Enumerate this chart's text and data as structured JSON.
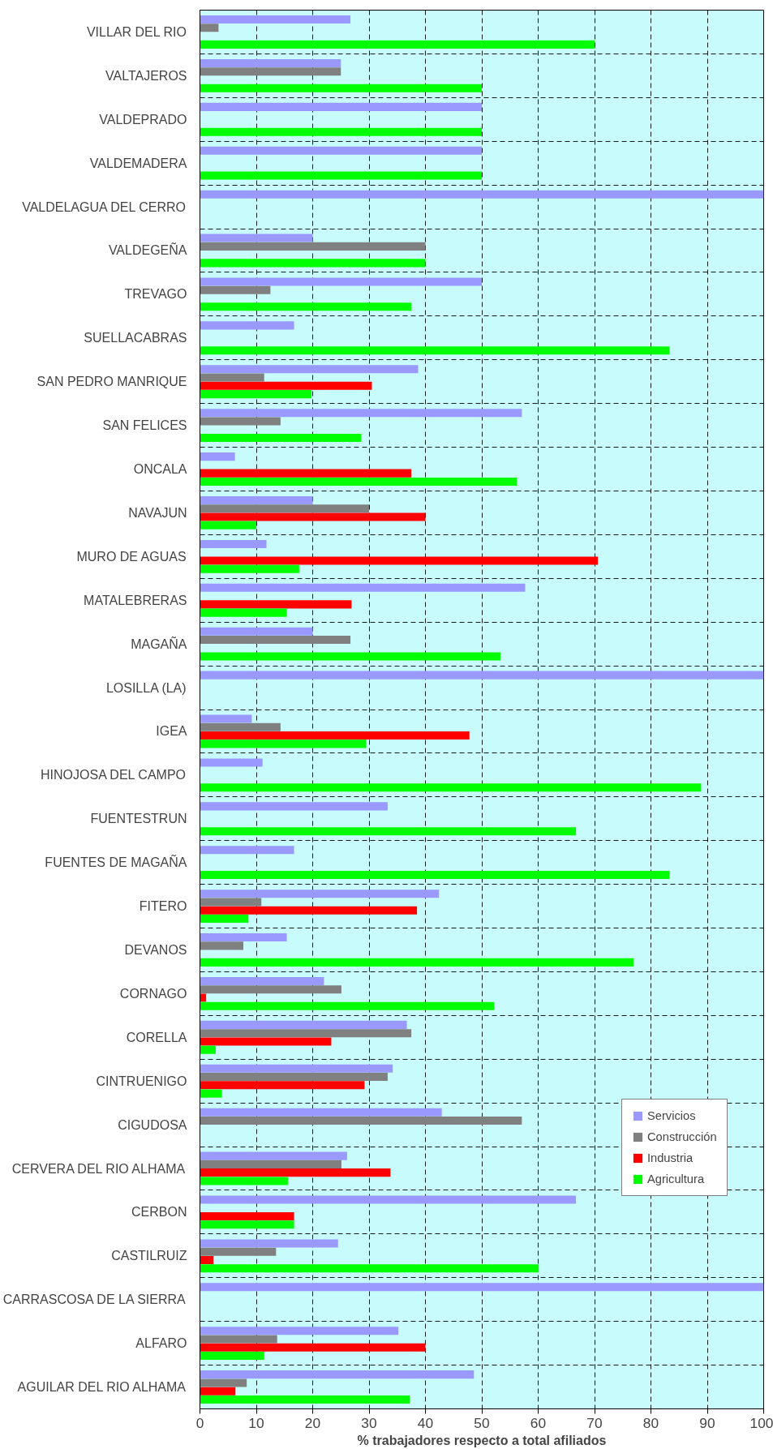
{
  "chart_data": {
    "type": "bar",
    "orientation": "horizontal",
    "xlabel": "% trabajadores respecto a total afiliados",
    "categories": [
      "VILLAR DEL RIO",
      "VALTAJEROS",
      "VALDEPRADO",
      "VALDEMADERA",
      "VALDELAGUA DEL CERRO",
      "VALDEGEÑA",
      "TREVAGO",
      "SUELLACABRAS",
      "SAN PEDRO MANRIQUE",
      "SAN FELICES",
      "ONCALA",
      "NAVAJUN",
      "MURO DE AGUAS",
      "MATALEBRERAS",
      "MAGAÑA",
      "LOSILLA (LA)",
      "IGEA",
      "HINOJOSA DEL CAMPO",
      "FUENTESTRUN",
      "FUENTES DE MAGAÑA",
      "FITERO",
      "DEVANOS",
      "CORNAGO",
      "CORELLA",
      "CINTRUENIGO",
      "CIGUDOSA",
      "CERVERA DEL RIO ALHAMA",
      "CERBON",
      "CASTILRUIZ",
      "CARRASCOSA DE LA SIERRA",
      "ALFARO",
      "AGUILAR DEL RIO ALHAMA"
    ],
    "series": [
      {
        "name": "Servicios",
        "color": "#9999ff",
        "values": [
          26.7,
          25,
          50,
          50,
          100,
          20,
          50,
          16.7,
          38.7,
          57.1,
          6.2,
          20,
          11.8,
          57.7,
          20,
          100,
          9.2,
          11.1,
          33.3,
          16.7,
          42.4,
          15.4,
          22,
          36.7,
          34.2,
          42.9,
          26.1,
          66.7,
          24.5,
          100,
          35.2,
          48.6
        ]
      },
      {
        "name": "Construcción",
        "color": "#808080",
        "values": [
          3.3,
          25,
          null,
          null,
          null,
          40,
          12.5,
          null,
          11.4,
          14.3,
          null,
          30,
          null,
          null,
          26.7,
          null,
          14.3,
          null,
          null,
          null,
          10.9,
          7.7,
          25.1,
          37.5,
          33.3,
          57.1,
          25.1,
          null,
          13.5,
          null,
          13.7,
          8.3
        ]
      },
      {
        "name": "Industria",
        "color": "#ff0000",
        "values": [
          null,
          null,
          null,
          null,
          null,
          null,
          null,
          null,
          30.5,
          null,
          37.5,
          40,
          70.6,
          26.9,
          null,
          null,
          47.8,
          null,
          null,
          null,
          38.5,
          null,
          1.1,
          23.3,
          29.2,
          null,
          33.8,
          16.7,
          2.4,
          null,
          40,
          6.3
        ]
      },
      {
        "name": "Agricultura",
        "color": "#00ff00",
        "values": [
          70,
          50,
          50,
          50,
          null,
          40,
          37.5,
          83.3,
          19.8,
          28.6,
          56.2,
          10,
          17.6,
          15.4,
          53.3,
          null,
          29.5,
          88.9,
          66.7,
          83.3,
          8.6,
          76.9,
          52.2,
          2.8,
          3.9,
          null,
          15.6,
          16.7,
          60.1,
          null,
          11.4,
          37.2
        ]
      }
    ],
    "xlim": [
      0,
      100
    ],
    "xticks": [
      0,
      10,
      20,
      30,
      40,
      50,
      60,
      70,
      80,
      90,
      100
    ],
    "grid": true,
    "legend": "right"
  }
}
